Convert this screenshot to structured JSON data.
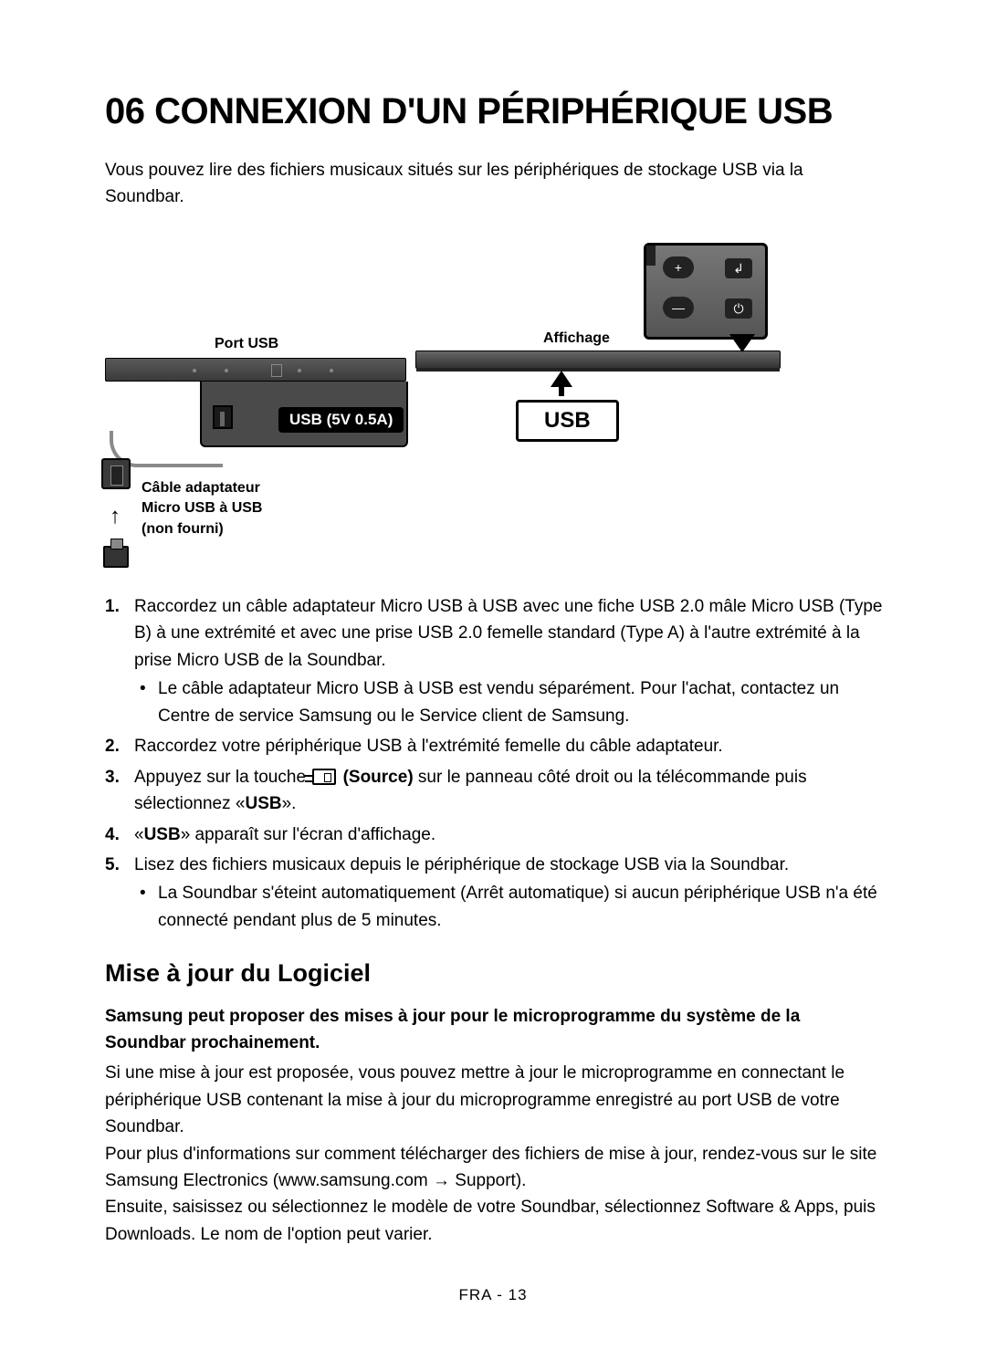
{
  "title": "06 CONNEXION D'UN PÉRIPHÉRIQUE USB",
  "intro": "Vous pouvez lire des fichiers musicaux situés sur les périphériques de stockage USB via la Soundbar.",
  "diagram": {
    "port_label": "Port USB",
    "display_label": "Affichage",
    "cable_label_l1": "Câble adaptateur",
    "cable_label_l2": "Micro USB à USB",
    "cable_label_l3": "(non fourni)",
    "usb_spec": "USB (5V 0.5A)",
    "usb_screen": "USB",
    "remote_plus": "+",
    "remote_minus": "—",
    "remote_src": "↲",
    "remote_pwr": "⏻"
  },
  "steps": {
    "s1": "Raccordez un câble adaptateur Micro USB à USB avec une fiche USB 2.0 mâle Micro USB (Type B) à une extrémité et avec une prise USB 2.0 femelle standard (Type A) à l'autre extrémité à la prise Micro USB de la Soundbar.",
    "s1_sub": "Le câble adaptateur Micro USB à USB est vendu séparément. Pour l'achat, contactez un Centre de service Samsung ou le Service client de Samsung.",
    "s2": "Raccordez votre périphérique USB à l'extrémité femelle du câble adaptateur.",
    "s3_a": "Appuyez sur la touche ",
    "s3_src": " (Source)",
    "s3_b": " sur le panneau côté droit ou la télécommande puis sélectionnez «",
    "s3_usb": "USB",
    "s3_c": "».",
    "s4_a": "«",
    "s4_usb": "USB",
    "s4_b": "» apparaît sur l'écran d'affichage.",
    "s5": "Lisez des fichiers musicaux depuis le périphérique de stockage USB via la Soundbar.",
    "s5_sub": "La Soundbar s'éteint automatiquement (Arrêt automatique) si aucun périphérique USB n'a été connecté pendant plus de 5 minutes."
  },
  "update": {
    "heading": "Mise à jour du Logiciel",
    "bold": "Samsung peut proposer des mises à jour pour le microprogramme du système de la Soundbar prochainement.",
    "p1": "Si une mise à jour est proposée, vous pouvez mettre à jour le microprogramme en connectant le périphérique USB contenant la mise à jour du microprogramme enregistré au port USB de votre Soundbar.",
    "p2": "Pour plus d'informations sur comment télécharger des fichiers de mise à jour, rendez-vous sur le site Samsung Electronics (www.samsung.com → Support).",
    "p3": "Ensuite, saisissez ou sélectionnez le modèle de votre Soundbar, sélectionnez Software & Apps, puis Downloads. Le nom de l'option peut varier."
  },
  "footer": "FRA - 13"
}
